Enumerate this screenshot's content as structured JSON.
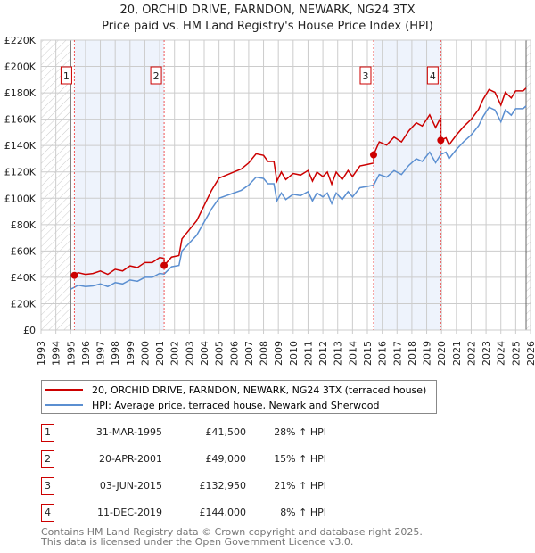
{
  "title_line1": "20, ORCHID DRIVE, FARNDON, NEWARK, NG24 3TX",
  "title_line2": "Price paid vs. HM Land Registry's House Price Index (HPI)",
  "chart_data": {
    "type": "line",
    "xlim": [
      1993,
      2026
    ],
    "ylim": [
      0,
      220000
    ],
    "yticks": [
      0,
      20000,
      40000,
      60000,
      80000,
      100000,
      120000,
      140000,
      160000,
      180000,
      200000,
      220000
    ],
    "ytick_labels": [
      "£0",
      "£20K",
      "£40K",
      "£60K",
      "£80K",
      "£100K",
      "£120K",
      "£140K",
      "£160K",
      "£180K",
      "£200K",
      "£220K"
    ],
    "xticks": [
      "1993",
      "1994",
      "1995",
      "1996",
      "1997",
      "1998",
      "1999",
      "2000",
      "2001",
      "2002",
      "2003",
      "2004",
      "2005",
      "2006",
      "2007",
      "2008",
      "2009",
      "2010",
      "2011",
      "2012",
      "2013",
      "2014",
      "2015",
      "2016",
      "2017",
      "2018",
      "2019",
      "2020",
      "2021",
      "2022",
      "2023",
      "2024",
      "2025",
      "2026"
    ],
    "colors": {
      "property": "#cc0000",
      "hpi": "#5b8fd1",
      "shade": "#eef3fc"
    },
    "series": [
      {
        "name": "20, ORCHID DRIVE, FARNDON, NEWARK, NG24 3TX (terraced house)",
        "key": "property"
      },
      {
        "name": "HPI: Average price, terraced house, Newark and Sherwood",
        "key": "hpi",
        "x": [
          1995.0,
          1995.25,
          1995.5,
          1996,
          1996.5,
          1997,
          1997.5,
          1998,
          1998.5,
          1999,
          1999.5,
          2000,
          2000.5,
          2001,
          2001.3,
          2001.8,
          2002.3,
          2002.5,
          2003,
          2003.5,
          2004,
          2004.5,
          2005,
          2005.5,
          2006,
          2006.5,
          2007,
          2007.5,
          2008,
          2008.3,
          2008.7,
          2008.9,
          2009.2,
          2009.5,
          2010,
          2010.5,
          2011,
          2011.3,
          2011.6,
          2012,
          2012.3,
          2012.6,
          2012.9,
          2013.3,
          2013.7,
          2014,
          2014.5,
          2015,
          2015.42,
          2015.8,
          2016.3,
          2016.8,
          2017.3,
          2017.8,
          2018.3,
          2018.7,
          2019.2,
          2019.6,
          2019.95,
          2020.3,
          2020.5,
          2021,
          2021.5,
          2022,
          2022.5,
          2022.8,
          2023.2,
          2023.6,
          2024,
          2024.3,
          2024.7,
          2025,
          2025.5,
          2025.7
        ],
        "y": [
          31000,
          32400,
          34000,
          33000,
          33500,
          35000,
          33000,
          36000,
          35000,
          38000,
          37000,
          40000,
          40000,
          43000,
          42500,
          48000,
          49000,
          60000,
          66000,
          72000,
          82000,
          92000,
          100000,
          102000,
          104000,
          106000,
          110000,
          116000,
          115000,
          111000,
          111000,
          98000,
          104000,
          99000,
          103000,
          102000,
          105000,
          98000,
          104000,
          101000,
          104000,
          96000,
          104000,
          99000,
          105000,
          101000,
          108000,
          109000,
          109900,
          118000,
          116000,
          121000,
          118000,
          125000,
          130000,
          128000,
          135000,
          127000,
          133300,
          135000,
          130000,
          137000,
          143000,
          148000,
          155000,
          162000,
          169000,
          167000,
          158000,
          167000,
          163000,
          168000,
          168000,
          170000
        ]
      }
    ],
    "sales": [
      {
        "label": "1",
        "x": 1995.25,
        "date": "31-MAR-1995",
        "price": 41500,
        "price_text": "£41,500",
        "hpi_text": "28% ↑ HPI"
      },
      {
        "label": "2",
        "x": 2001.3,
        "date": "20-APR-2001",
        "price": 49000,
        "price_text": "£49,000",
        "hpi_text": "15% ↑ HPI"
      },
      {
        "label": "3",
        "x": 2015.42,
        "date": "03-JUN-2015",
        "price": 132950,
        "price_text": "£132,950",
        "hpi_text": "21% ↑ HPI"
      },
      {
        "label": "4",
        "x": 2019.95,
        "date": "11-DEC-2019",
        "price": 144000,
        "price_text": "£144,000",
        "hpi_text": "8% ↑ HPI"
      }
    ]
  },
  "footer_line1": "Contains HM Land Registry data © Crown copyright and database right 2025.",
  "footer_line2": "This data is licensed under the Open Government Licence v3.0."
}
